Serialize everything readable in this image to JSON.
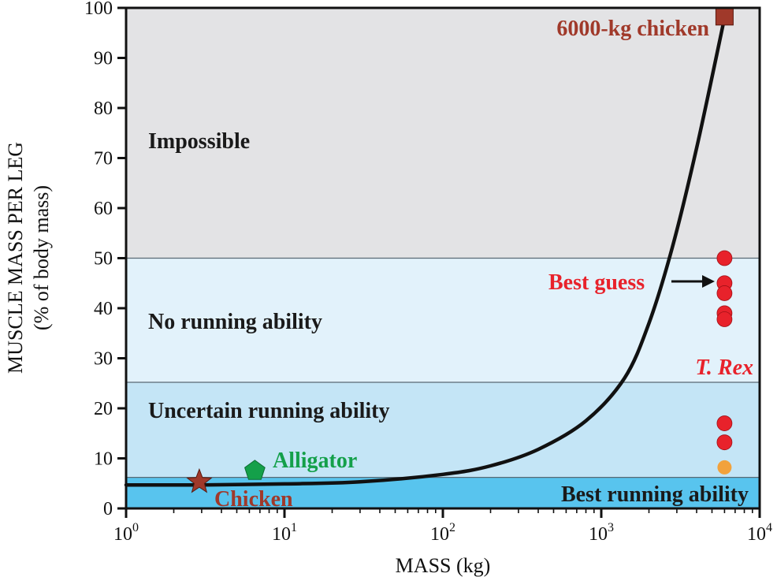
{
  "chart_data": {
    "type": "scatter",
    "x_scale": "log",
    "xlim": [
      1,
      10000
    ],
    "ylim": [
      0,
      100
    ],
    "xlabel": "MASS (kg)",
    "ylabel": [
      "MUSCLE MASS PER LEG",
      "(% of body mass)"
    ],
    "x_ticks": [
      {
        "base": "10",
        "exp": "0"
      },
      {
        "base": "10",
        "exp": "1"
      },
      {
        "base": "10",
        "exp": "2"
      },
      {
        "base": "10",
        "exp": "3"
      },
      {
        "base": "10",
        "exp": "4"
      }
    ],
    "y_ticks": [
      "0",
      "10",
      "20",
      "30",
      "40",
      "50",
      "60",
      "70",
      "80",
      "90",
      "100"
    ],
    "regions": [
      {
        "label": "Impossible",
        "from": 50,
        "to": 100,
        "color": "#e3e3e5"
      },
      {
        "label": "No running ability",
        "from": 25.2,
        "to": 50,
        "color": "#e2f2fb"
      },
      {
        "label": "Uncertain running ability",
        "from": 6.2,
        "to": 25.2,
        "color": "#c4e5f6"
      },
      {
        "label": "Best running ability",
        "from": 0,
        "to": 6.2,
        "color": "#58c4ee"
      }
    ],
    "curve": {
      "x": [
        1,
        3,
        10,
        30,
        100,
        200,
        400,
        800,
        1400,
        2000,
        2800,
        4000,
        6000
      ],
      "y": [
        4.7,
        4.7,
        4.9,
        5.3,
        6.8,
        8.5,
        11.8,
        17.5,
        26,
        37,
        52,
        72,
        98
      ]
    },
    "points": [
      {
        "name": "6000-kg chicken",
        "x": 6000,
        "y": 98.3,
        "shape": "square",
        "color": "#a0392a"
      },
      {
        "name": "Alligator",
        "x": 6.5,
        "y": 7.5,
        "shape": "pentagon",
        "color": "#14a04a"
      },
      {
        "name": "Chicken",
        "x": 2.9,
        "y": 5.3,
        "shape": "star",
        "color": "#a0392a"
      }
    ],
    "trex_estimates": {
      "name": "T. Rex",
      "x": 6000,
      "y": [
        50,
        45,
        43,
        39,
        37.8,
        17,
        13.2
      ],
      "color": "#e8222b",
      "low_estimate": {
        "y": 8.2,
        "color": "#f2a23c"
      }
    },
    "annotations": [
      {
        "text": "Best guess",
        "color": "#e8222b",
        "arrow_to_y": 45
      }
    ]
  }
}
